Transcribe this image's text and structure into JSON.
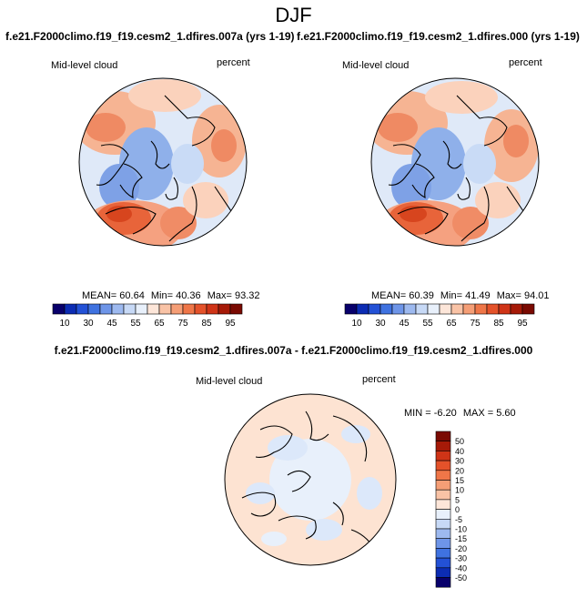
{
  "season": "DJF",
  "top_left": {
    "case_title": "f.e21.F2000climo.f19_f19.cesm2_1.dfires.007a (yrs 1-19)",
    "variable": "Mid-level cloud",
    "units": "percent",
    "mean_label": "MEAN=",
    "mean": "60.64",
    "min_label": "Min=",
    "min": "40.36",
    "max_label": "Max=",
    "max": "93.32"
  },
  "top_right": {
    "case_title": "f.e21.F2000climo.f19_f19.cesm2_1.dfires.000 (yrs 1-19)",
    "variable": "Mid-level cloud",
    "units": "percent",
    "mean_label": "MEAN=",
    "mean": "60.39",
    "min_label": "Min=",
    "min": "41.49",
    "max_label": "Max=",
    "max": "94.01"
  },
  "diff": {
    "case_title": "f.e21.F2000climo.f19_f19.cesm2_1.dfires.007a - f.e21.F2000climo.f19_f19.cesm2_1.dfires.000",
    "variable": "Mid-level cloud",
    "units": "percent",
    "min_label": "MIN =",
    "min": "-6.20",
    "max_label": "MAX =",
    "max": "5.60"
  },
  "colorbar_top": {
    "labels": [
      "10",
      "30",
      "45",
      "55",
      "65",
      "75",
      "85",
      "95"
    ],
    "colors": [
      "#08006b",
      "#0c2cb3",
      "#2351d6",
      "#3f72e0",
      "#6e95e8",
      "#9db9ef",
      "#c7d9f6",
      "#e8f0fb",
      "#fde6d9",
      "#f9c3a6",
      "#f59e76",
      "#ef7648",
      "#e4522a",
      "#cf3417",
      "#a61a08",
      "#7a0a02"
    ]
  },
  "colorbar_diff": {
    "labels": [
      "50",
      "40",
      "30",
      "20",
      "15",
      "10",
      "5",
      "0",
      "-5",
      "-10",
      "-15",
      "-20",
      "-30",
      "-40",
      "-50"
    ],
    "colors": [
      "#7a0a02",
      "#a61a08",
      "#cf3417",
      "#e4522a",
      "#ef7648",
      "#f59e76",
      "#f9c3a6",
      "#fde6d9",
      "#e8f0fb",
      "#c7d9f6",
      "#9db9ef",
      "#6e95e8",
      "#3f72e0",
      "#2351d6",
      "#0c2cb3",
      "#08006b"
    ]
  },
  "colors": {
    "ocean_blue": "#b9d2f3",
    "deep_blue": "#5e86de",
    "warm": "#f4a37e",
    "hot": "#e5572f",
    "neutral_peach": "#fde3d2",
    "coast": "#000000"
  }
}
